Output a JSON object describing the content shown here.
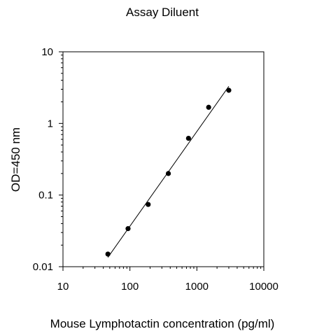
{
  "chart_data": {
    "type": "scatter",
    "title": "Assay Diluent",
    "xlabel": "Mouse Lymphotactin concentration (pg/ml)",
    "ylabel": "OD=450 nm",
    "xscale": "log",
    "yscale": "log",
    "xlim": [
      10,
      10000
    ],
    "ylim": [
      0.01,
      10
    ],
    "xticks": [
      10,
      100,
      1000,
      10000
    ],
    "xtick_labels": [
      "10",
      "100",
      "1000",
      "10000"
    ],
    "yticks": [
      0.01,
      0.1,
      1,
      10
    ],
    "ytick_labels": [
      "0.01",
      "0.1",
      "1",
      "10"
    ],
    "grid": false,
    "points": [
      {
        "x": 46.875,
        "y": 0.015
      },
      {
        "x": 93.75,
        "y": 0.034
      },
      {
        "x": 187.5,
        "y": 0.074
      },
      {
        "x": 375,
        "y": 0.2
      },
      {
        "x": 750,
        "y": 0.62
      },
      {
        "x": 1500,
        "y": 1.68
      },
      {
        "x": 3000,
        "y": 2.9
      }
    ],
    "fit_line": {
      "x": [
        46.875,
        3000
      ],
      "y": [
        0.0135,
        3.3
      ]
    }
  }
}
